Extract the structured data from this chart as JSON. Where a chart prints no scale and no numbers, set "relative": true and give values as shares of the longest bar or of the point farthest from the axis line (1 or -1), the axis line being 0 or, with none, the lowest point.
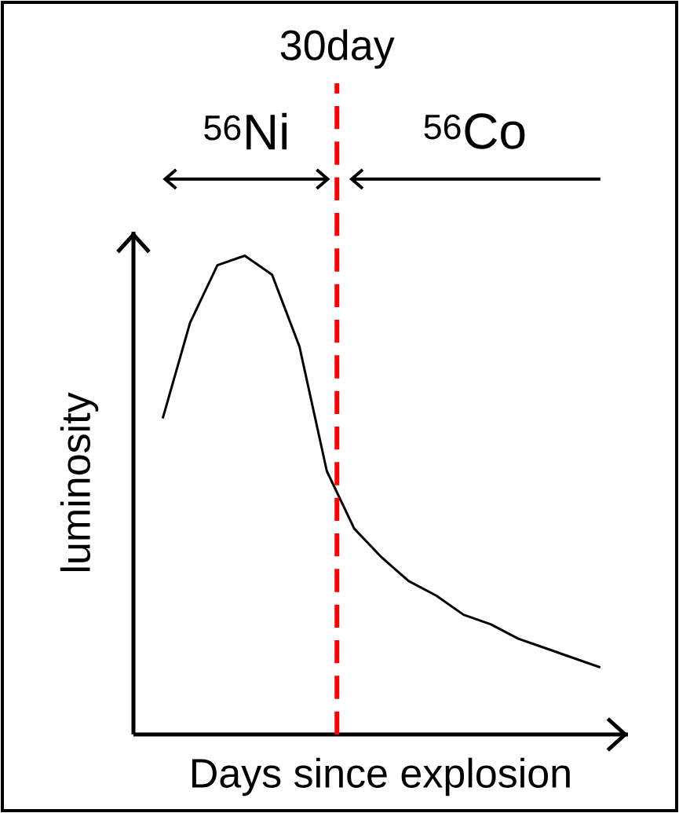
{
  "chart_data": {
    "type": "line",
    "xlabel": "Days since explosion",
    "ylabel": "luminosity",
    "relative": true,
    "tick_labels": false,
    "categories": [
      null,
      null,
      null,
      null,
      null,
      null,
      null,
      null,
      null,
      null,
      null,
      null,
      null,
      null,
      null,
      null,
      null
    ],
    "series": [
      {
        "color": "#000000",
        "values": [
          0.66,
          0.86,
          0.98,
          1.0,
          0.96,
          0.81,
          0.55,
          0.43,
          0.37,
          0.32,
          0.29,
          0.25,
          0.23,
          0.2,
          0.18,
          0.16,
          0.14
        ]
      }
    ],
    "annotations": [
      "30day",
      "$^{56}$Ni",
      "$^{56}$Co"
    ]
  }
}
